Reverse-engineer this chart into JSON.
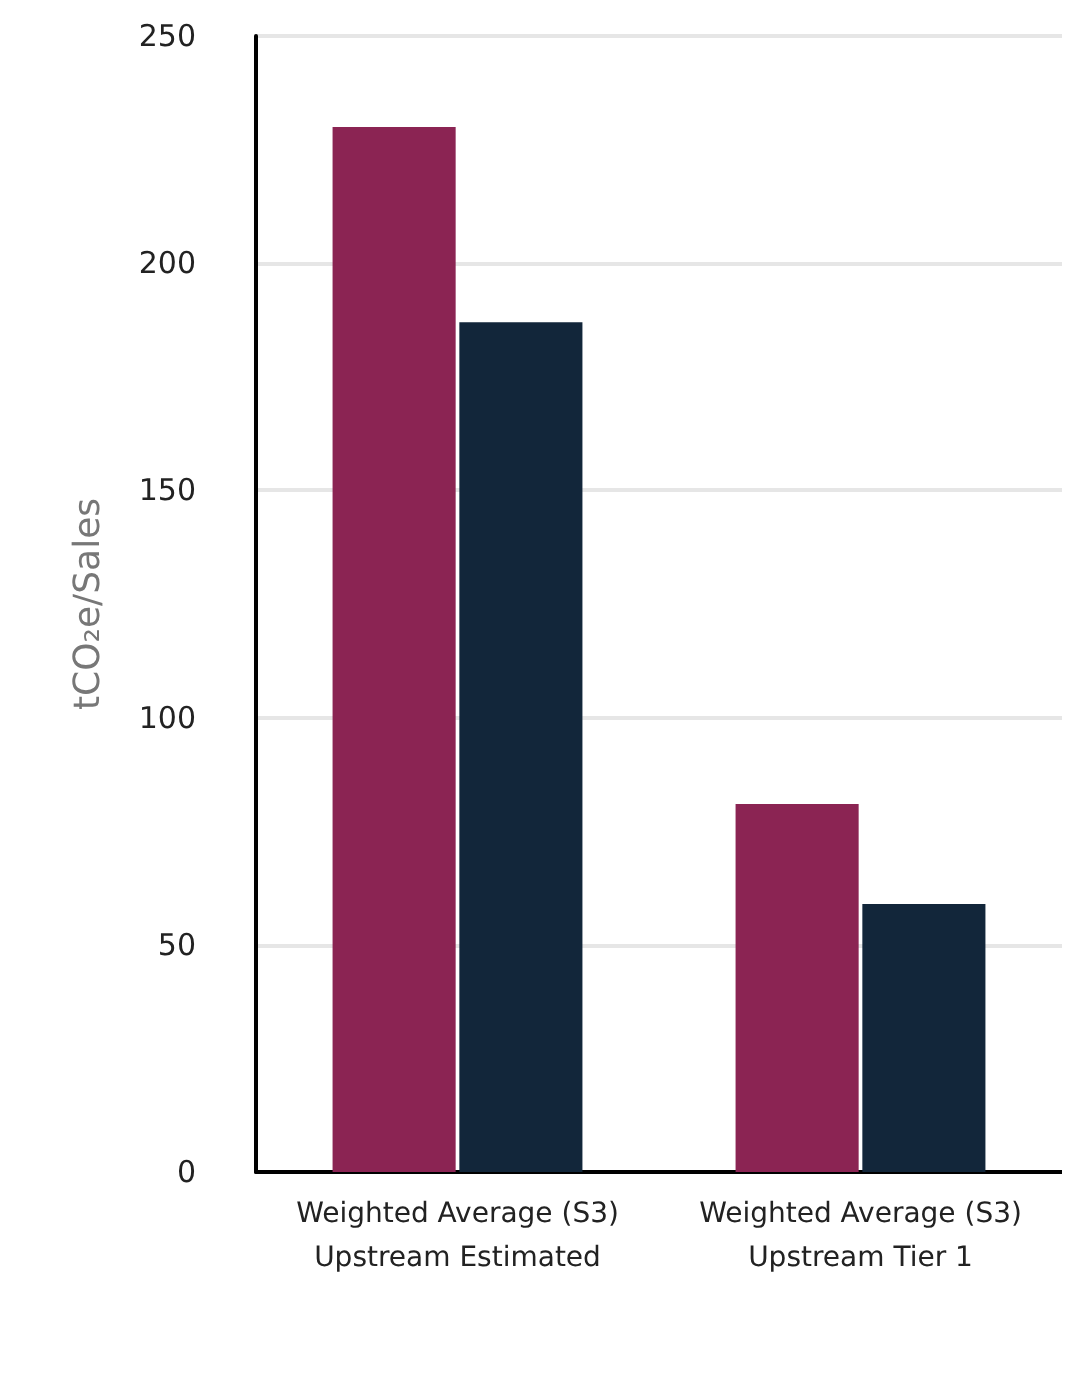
{
  "chart_data": {
    "type": "bar",
    "ylabel": "tCO₂e/Sales",
    "categories": [
      "Weighted Average (S3)\nUpstream Estimated",
      "Weighted Average (S3)\nUpstream Tier 1"
    ],
    "series": [
      {
        "color": "#8b2453",
        "values": [
          230,
          81
        ]
      },
      {
        "color": "#12263a",
        "values": [
          187,
          59
        ]
      }
    ],
    "ylim": [
      0,
      250
    ],
    "yticks": [
      0,
      50,
      100,
      150,
      200,
      250
    ],
    "grid": "y"
  }
}
